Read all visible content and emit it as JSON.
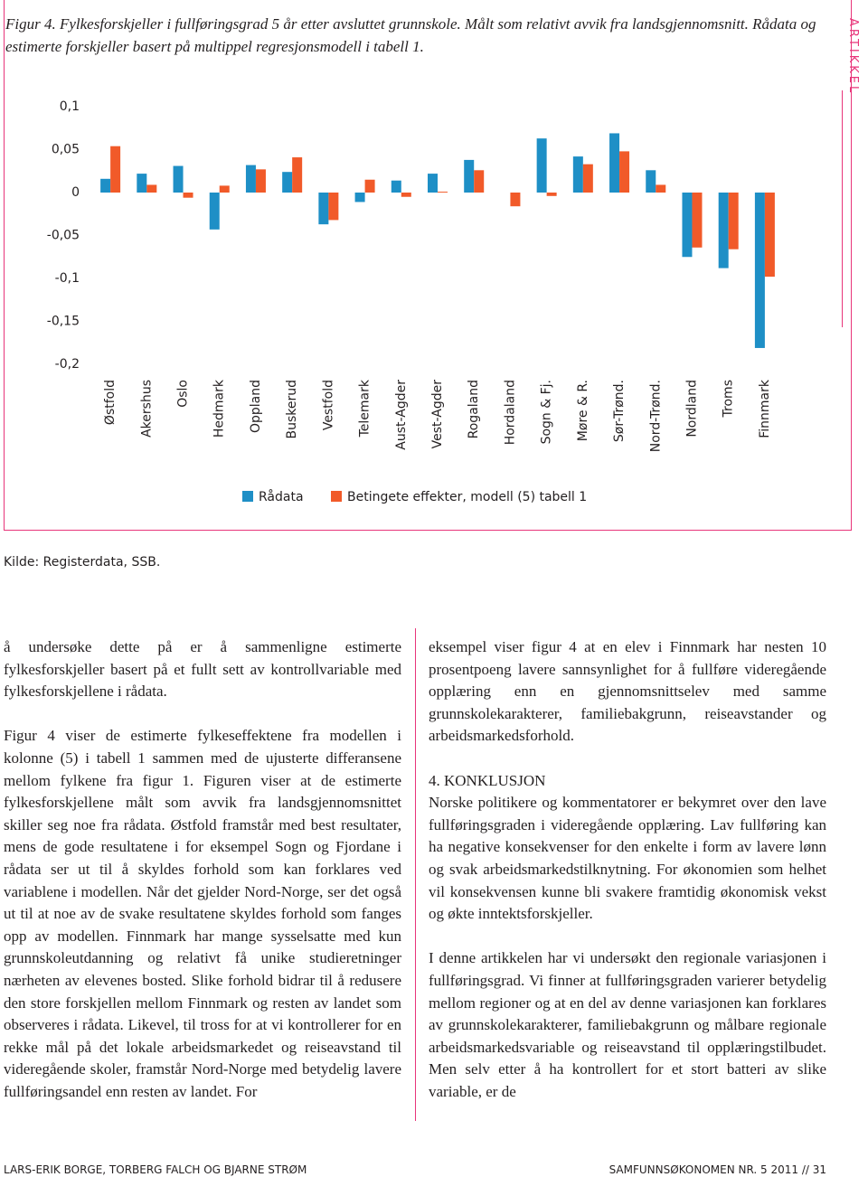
{
  "caption": "Figur 4. Fylkesforskjeller i fullføringsgrad 5 år etter avsluttet grunnskole. Målt som relativt avvik fra landsgjennomsnitt. Rådata og estimerte forskjeller basert på multippel regresjonsmodell i tabell 1.",
  "side_label": "ARTIKKEL",
  "chart_data": {
    "type": "bar",
    "categories": [
      "Østfold",
      "Akershus",
      "Oslo",
      "Hedmark",
      "Oppland",
      "Buskerud",
      "Vestfold",
      "Telemark",
      "Aust-Agder",
      "Vest-Agder",
      "Rogaland",
      "Hordaland",
      "Sogn & Fj.",
      "Møre & R.",
      "Sør-Trønd.",
      "Nord-Trønd.",
      "Nordland",
      "Troms",
      "Finnmark"
    ],
    "series": [
      {
        "name": "Rådata",
        "color": "#1e8fc6",
        "values": [
          0.016,
          0.022,
          0.031,
          -0.043,
          0.032,
          0.024,
          -0.037,
          -0.011,
          0.014,
          0.022,
          0.038,
          0,
          0.063,
          0.042,
          0.069,
          0.026,
          -0.075,
          -0.088,
          -0.181
        ]
      },
      {
        "name": "Betingete effekter, modell (5) tabell 1",
        "color": "#f15a29",
        "values": [
          0.054,
          0.009,
          -0.006,
          0.008,
          0.027,
          0.041,
          -0.032,
          0.015,
          -0.005,
          0.001,
          0.026,
          -0.016,
          -0.004,
          0.033,
          0.048,
          0.009,
          -0.064,
          -0.066,
          -0.098
        ]
      }
    ],
    "ylim": [
      -0.2,
      0.1
    ],
    "yticks": [
      {
        "value": 0.1,
        "label": "0,1"
      },
      {
        "value": 0.05,
        "label": "0,05"
      },
      0,
      {
        "value": -0.05,
        "label": "-0,05"
      },
      {
        "value": -0.1,
        "label": "-0,1"
      },
      {
        "value": -0.15,
        "label": "-0,15"
      },
      {
        "value": -0.2,
        "label": "-0,2"
      }
    ],
    "grid": false,
    "legend": "bottom"
  },
  "source": "Kilde: Registerdata, SSB.",
  "left_column": [
    "å undersøke dette på er å sammenligne estimerte fylkesforskjeller basert på et fullt sett av kontrollvariable med fylkesforskjellene i rådata.",
    "Figur 4 viser de estimerte fylkeseffektene fra modellen i kolonne (5) i tabell 1 sammen med de ujusterte differansene mellom fylkene fra figur 1. Figuren viser at de estimerte fylkesforskjellene målt som avvik fra landsgjennomsnittet skiller seg noe fra rådata. Østfold framstår med best resultater, mens de gode resultatene i for eksempel Sogn og Fjordane i rådata ser ut til å skyldes forhold som kan forklares ved variablene i modellen. Når det gjelder Nord-Norge, ser det også ut til at noe av de svake resultatene skyldes forhold som fanges opp av modellen. Finnmark har mange sysselsatte med kun grunnskoleutdanning og relativt få unike studieretninger nærheten av elevenes bosted. Slike forhold bidrar til å redusere den store forskjellen mellom Finnmark og resten av landet som observeres i rådata. Likevel, til tross for at vi kontrollerer for en rekke mål på det lokale arbeidsmarkedet og reiseavstand til videregående skoler, framstår Nord-Norge med betydelig lavere fullføringsandel enn resten av landet. For"
  ],
  "right_column": {
    "intro": "eksempel viser figur 4 at en elev i Finnmark har nesten 10 prosentpoeng lavere sannsynlighet for å fullføre videregående opplæring enn en gjennomsnittselev med samme grunnskolekarakterer, familiebakgrunn, reiseavstander og arbeidsmarkedsforhold.",
    "heading": "4. KONKLUSJON",
    "paragraphs": [
      "Norske politikere og kommentatorer er bekymret over den lave fullføringsgraden i videregående opplæring. Lav fullføring kan ha negative konsekvenser for den enkelte i form av lavere lønn og svak arbeidsmarkedstilknytning. For økonomien som helhet vil konsekvensen kunne bli svakere framtidig økonomisk vekst og økte inntektsforskjeller.",
      "I denne artikkelen har vi undersøkt den regionale variasjonen i fullføringsgrad. Vi finner at fullføringsgraden varierer betydelig mellom regioner og at en del av denne variasjonen kan forklares av grunnskolekarakterer, familiebakgrunn og målbare regionale arbeidsmarkedsvariable og reiseavstand til opplæringstilbudet. Men selv etter å ha kontrollert for et stort batteri av slike variable, er de"
    ]
  },
  "footer": {
    "authors": "LARS-ERIK BORGE, TORBERG FALCH OG BJARNE STRØM",
    "journal": "SAMFUNNSØKONOMEN NR. 5 2011 // 31"
  }
}
